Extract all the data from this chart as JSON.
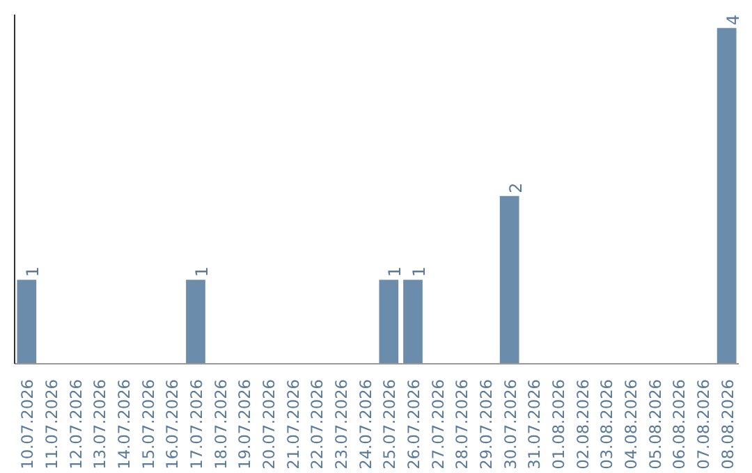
{
  "chart_data": {
    "type": "bar",
    "categories": [
      "10.07.2026",
      "11.07.2026",
      "12.07.2026",
      "13.07.2026",
      "14.07.2026",
      "15.07.2026",
      "16.07.2026",
      "17.07.2026",
      "18.07.2026",
      "19.07.2026",
      "20.07.2026",
      "21.07.2026",
      "22.07.2026",
      "23.07.2026",
      "24.07.2026",
      "25.07.2026",
      "26.07.2026",
      "27.07.2026",
      "28.07.2026",
      "29.07.2026",
      "30.07.2026",
      "31.07.2026",
      "01.08.2026",
      "02.08.2026",
      "03.08.2026",
      "04.08.2026",
      "05.08.2026",
      "06.08.2026",
      "07.08.2026",
      "08.08.2026"
    ],
    "values": [
      1,
      0,
      0,
      0,
      0,
      0,
      0,
      1,
      0,
      0,
      0,
      0,
      0,
      0,
      0,
      1,
      1,
      0,
      0,
      0,
      2,
      0,
      0,
      0,
      0,
      0,
      0,
      0,
      0,
      4
    ],
    "value_labels": [
      "1",
      null,
      null,
      null,
      null,
      null,
      null,
      "1",
      null,
      null,
      null,
      null,
      null,
      null,
      null,
      "1",
      "1",
      null,
      null,
      null,
      "2",
      null,
      null,
      null,
      null,
      null,
      null,
      null,
      null,
      "4"
    ],
    "color": "#6b8cab",
    "grid": false
  }
}
